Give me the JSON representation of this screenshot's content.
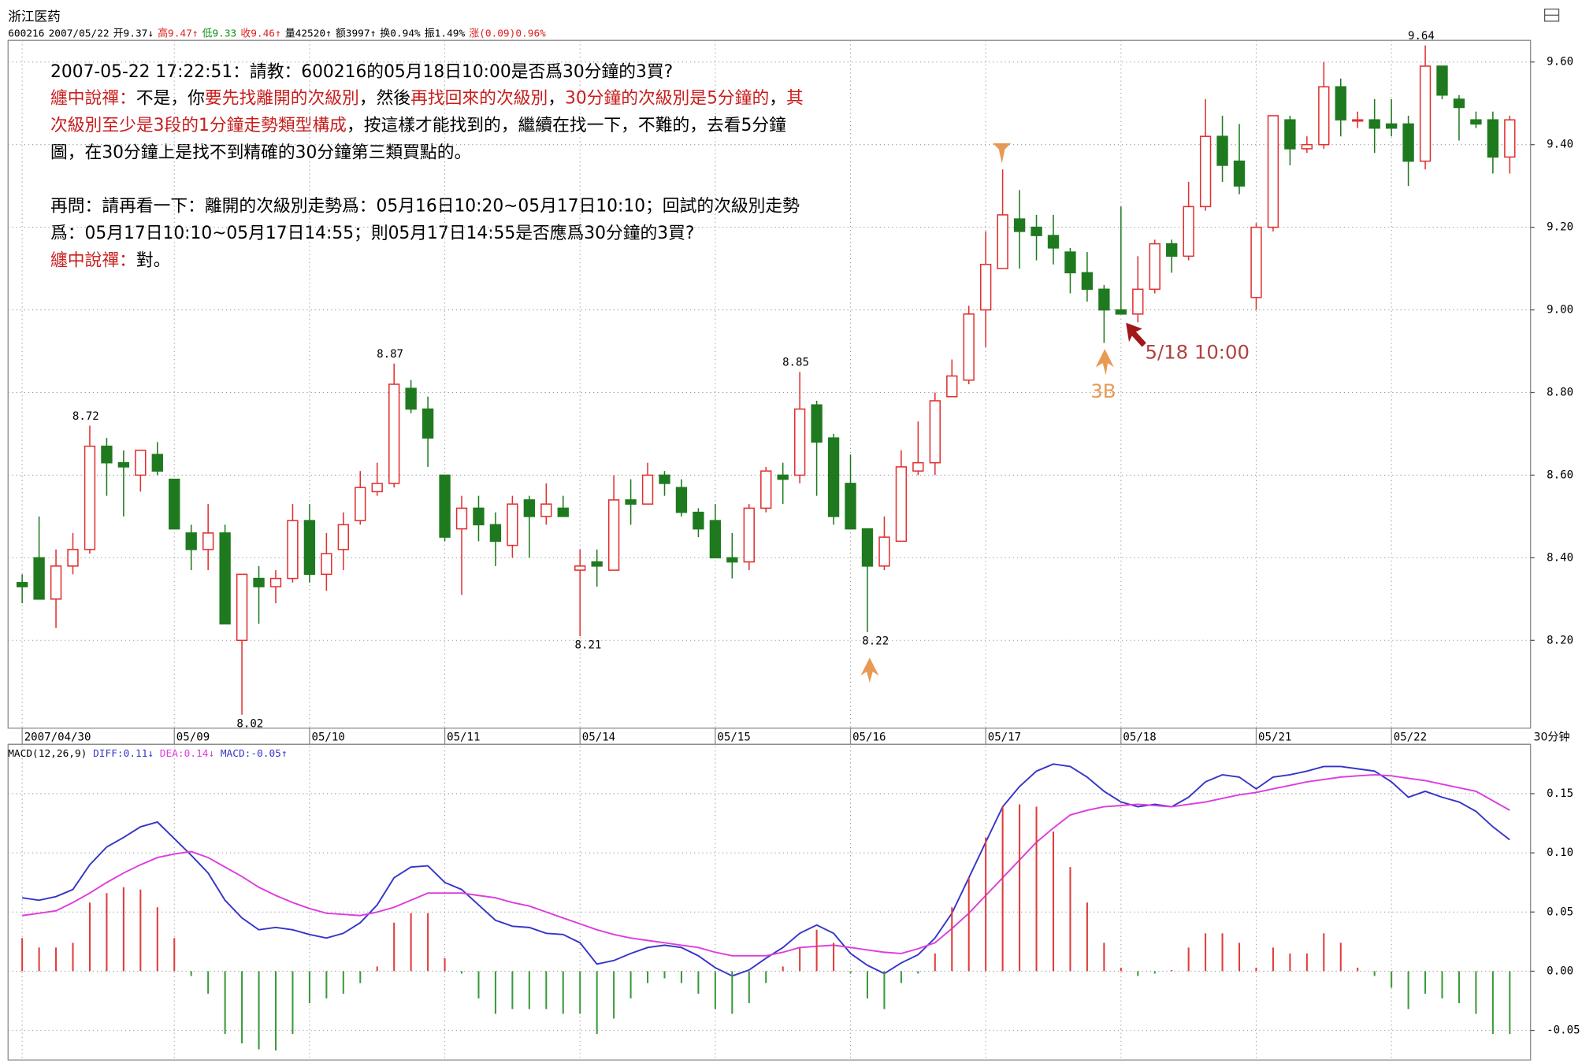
{
  "header": {
    "name": "浙江医药",
    "info": [
      {
        "text": "600216",
        "color": "#000000"
      },
      {
        "text": "2007/05/22",
        "color": "#000000"
      },
      {
        "text": "开9.37↓",
        "color": "#000000"
      },
      {
        "text": "高9.47↑",
        "color": "#e02020"
      },
      {
        "text": "低9.33",
        "color": "#109010"
      },
      {
        "text": "收9.46↑",
        "color": "#e02020"
      },
      {
        "text": "量42520↑",
        "color": "#000000"
      },
      {
        "text": "额3997↑",
        "color": "#000000"
      },
      {
        "text": "换0.94%",
        "color": "#000000"
      },
      {
        "text": "振1.49%",
        "color": "#000000"
      },
      {
        "text": "涨(0.09)0.96%",
        "color": "#e02020"
      }
    ]
  },
  "notes": [
    [
      {
        "text": "2007-05-22 17:22:51：請教：600216的05月18日10:00是否爲30分鐘的3買?",
        "color": "#000000"
      }
    ],
    [
      {
        "text": "纏中說禪：",
        "color": "#c81e1e"
      },
      {
        "text": "不是，你",
        "color": "#000000"
      },
      {
        "text": "要先找離開的次級別",
        "color": "#c81e1e"
      },
      {
        "text": "，然後",
        "color": "#000000"
      },
      {
        "text": "再找回來的次級別",
        "color": "#c81e1e"
      },
      {
        "text": "，",
        "color": "#000000"
      },
      {
        "text": "30分鐘的次級別是5分鐘的",
        "color": "#c81e1e"
      },
      {
        "text": "，",
        "color": "#000000"
      },
      {
        "text": "其",
        "color": "#c81e1e"
      }
    ],
    [
      {
        "text": "次級別至少是3段的1分鐘走勢類型構成",
        "color": "#c81e1e"
      },
      {
        "text": "，按這樣才能找到的，繼續在找一下，不難的，去看5分鐘",
        "color": "#000000"
      }
    ],
    [
      {
        "text": "圖，在30分鐘上是找不到精確的30分鐘第三類買點的。",
        "color": "#000000"
      }
    ],
    [
      {
        "text": "再問：請再看一下：離開的次級別走勢爲：05月16日10:20~05月17日10:10；回試的次級別走勢",
        "color": "#000000"
      }
    ],
    [
      {
        "text": "爲：05月17日10:10~05月17日14:55；則05月17日14:55是否應爲30分鐘的3買?",
        "color": "#000000"
      }
    ],
    [
      {
        "text": "纏中說禪：",
        "color": "#c81e1e"
      },
      {
        "text": "對。",
        "color": "#000000"
      }
    ]
  ],
  "point_label": "5/18 10:00",
  "buy_label": "3B",
  "period": "30分钟",
  "chart_data": [
    {
      "type": "candlestick",
      "categories": [
        "2007/04/30",
        null,
        null,
        null,
        null,
        null,
        null,
        null,
        null,
        "05/09",
        null,
        null,
        null,
        null,
        null,
        null,
        null,
        "05/10",
        null,
        null,
        null,
        null,
        null,
        null,
        null,
        "05/11",
        null,
        null,
        null,
        null,
        null,
        null,
        null,
        "05/14",
        null,
        null,
        null,
        null,
        null,
        null,
        null,
        "05/15",
        null,
        null,
        null,
        null,
        null,
        null,
        null,
        "05/16",
        null,
        null,
        null,
        null,
        null,
        null,
        null,
        "05/17",
        null,
        null,
        null,
        null,
        null,
        null,
        null,
        "05/18",
        null,
        null,
        null,
        null,
        null,
        null,
        null,
        "05/21",
        null,
        null,
        null,
        null,
        null,
        null,
        null,
        "05/22",
        null,
        null,
        null,
        null,
        null,
        null,
        null
      ],
      "open": [
        8.34,
        8.4,
        8.3,
        8.38,
        8.42,
        8.67,
        8.63,
        8.6,
        8.65,
        8.59,
        8.46,
        8.42,
        8.46,
        8.2,
        8.35,
        8.33,
        8.35,
        8.49,
        8.36,
        8.42,
        8.49,
        8.56,
        8.58,
        8.81,
        8.76,
        8.6,
        8.47,
        8.52,
        8.48,
        8.43,
        8.54,
        8.5,
        8.52,
        8.37,
        8.39,
        8.37,
        8.54,
        8.53,
        8.6,
        8.57,
        8.51,
        8.49,
        8.4,
        8.39,
        8.52,
        8.6,
        8.6,
        8.77,
        8.69,
        8.58,
        8.47,
        8.38,
        8.44,
        8.61,
        8.63,
        8.79,
        8.83,
        9.0,
        9.1,
        9.22,
        9.2,
        9.18,
        9.14,
        9.09,
        9.05,
        9.0,
        8.99,
        9.05,
        9.16,
        9.13,
        9.25,
        9.42,
        9.36,
        9.03,
        9.2,
        9.46,
        9.39,
        9.4,
        9.54,
        9.46,
        9.46,
        9.45,
        9.45,
        9.36,
        9.59,
        9.51,
        9.46,
        9.46,
        9.37
      ],
      "high": [
        8.36,
        8.5,
        8.42,
        8.46,
        8.72,
        8.69,
        8.66,
        8.66,
        8.68,
        8.59,
        8.48,
        8.53,
        8.48,
        8.36,
        8.38,
        8.37,
        8.53,
        8.53,
        8.46,
        8.51,
        8.61,
        8.63,
        8.87,
        8.83,
        8.79,
        8.6,
        8.55,
        8.55,
        8.51,
        8.55,
        8.55,
        8.58,
        8.55,
        8.42,
        8.42,
        8.6,
        8.59,
        8.63,
        8.61,
        8.59,
        8.52,
        8.53,
        8.46,
        8.53,
        8.62,
        8.63,
        8.85,
        8.78,
        8.7,
        8.65,
        8.47,
        8.5,
        8.66,
        8.73,
        8.8,
        8.88,
        9.01,
        9.19,
        9.34,
        9.29,
        9.23,
        9.23,
        9.15,
        9.14,
        9.06,
        9.25,
        9.13,
        9.17,
        9.17,
        9.31,
        9.51,
        9.47,
        9.45,
        9.21,
        9.47,
        9.47,
        9.42,
        9.6,
        9.56,
        9.48,
        9.51,
        9.51,
        9.47,
        9.64,
        9.59,
        9.52,
        9.48,
        9.48,
        9.47
      ],
      "low": [
        8.29,
        8.3,
        8.23,
        8.36,
        8.41,
        8.55,
        8.5,
        8.56,
        8.6,
        8.47,
        8.37,
        8.37,
        8.24,
        8.02,
        8.24,
        8.29,
        8.34,
        8.34,
        8.32,
        8.37,
        8.48,
        8.55,
        8.57,
        8.75,
        8.62,
        8.44,
        8.31,
        8.44,
        8.38,
        8.4,
        8.4,
        8.48,
        8.5,
        8.21,
        8.33,
        8.37,
        8.48,
        8.53,
        8.55,
        8.5,
        8.45,
        8.4,
        8.35,
        8.37,
        8.51,
        8.53,
        8.58,
        8.55,
        8.48,
        8.47,
        8.22,
        8.37,
        8.44,
        8.6,
        8.6,
        8.79,
        8.82,
        8.91,
        9.1,
        9.1,
        9.12,
        9.11,
        9.04,
        9.02,
        8.92,
        8.99,
        8.97,
        9.04,
        9.09,
        9.12,
        9.24,
        9.31,
        9.28,
        9.0,
        9.19,
        9.35,
        9.38,
        9.39,
        9.42,
        9.44,
        9.38,
        9.42,
        9.3,
        9.34,
        9.51,
        9.41,
        9.44,
        9.33,
        9.33
      ],
      "close": [
        8.33,
        8.3,
        8.38,
        8.42,
        8.67,
        8.63,
        8.62,
        8.66,
        8.61,
        8.47,
        8.42,
        8.46,
        8.24,
        8.36,
        8.33,
        8.35,
        8.49,
        8.36,
        8.41,
        8.48,
        8.57,
        8.58,
        8.82,
        8.76,
        8.69,
        8.45,
        8.52,
        8.48,
        8.44,
        8.53,
        8.5,
        8.53,
        8.5,
        8.38,
        8.38,
        8.54,
        8.53,
        8.6,
        8.58,
        8.51,
        8.47,
        8.4,
        8.39,
        8.52,
        8.61,
        8.59,
        8.76,
        8.68,
        8.5,
        8.47,
        8.38,
        8.45,
        8.62,
        8.63,
        8.78,
        8.84,
        8.99,
        9.11,
        9.23,
        9.19,
        9.18,
        9.15,
        9.09,
        9.05,
        9.0,
        8.99,
        9.05,
        9.16,
        9.13,
        9.25,
        9.42,
        9.35,
        9.3,
        9.2,
        9.47,
        9.39,
        9.4,
        9.54,
        9.46,
        9.46,
        9.44,
        9.44,
        9.36,
        9.59,
        9.52,
        9.49,
        9.45,
        9.37,
        9.46
      ],
      "up_color": "#e03030",
      "down_color": "#1f7a1f",
      "labeled_highs": [
        4,
        22,
        46,
        83
      ],
      "labeled_lows": [
        13,
        33,
        50
      ],
      "ylim": [
        7.99,
        9.65
      ],
      "yticks": [
        {
          "value": 8.2,
          "label": "8.20"
        },
        {
          "value": 8.4,
          "label": "8.40"
        },
        {
          "value": 8.6,
          "label": "8.60"
        },
        {
          "value": 8.8,
          "label": "8.80"
        },
        {
          "value": 9.0,
          "label": "9.00"
        },
        {
          "value": 9.2,
          "label": "9.20"
        },
        {
          "value": 9.4,
          "label": "9.40"
        },
        {
          "value": 9.6,
          "label": "9.60"
        }
      ],
      "grid": true
    },
    {
      "type": "macd",
      "title": "MACD(12,26,9)",
      "series": [
        {
          "name": "DIFF:0.11↓",
          "color": "#3535c8",
          "values": [
            0.062,
            0.06,
            0.063,
            0.069,
            0.09,
            0.105,
            0.113,
            0.122,
            0.126,
            0.112,
            0.098,
            0.083,
            0.06,
            0.045,
            0.035,
            0.037,
            0.035,
            0.031,
            0.028,
            0.032,
            0.041,
            0.056,
            0.079,
            0.088,
            0.089,
            0.075,
            0.069,
            0.056,
            0.043,
            0.038,
            0.037,
            0.032,
            0.031,
            0.024,
            0.006,
            0.009,
            0.015,
            0.02,
            0.022,
            0.02,
            0.013,
            0.003,
            -0.004,
            0.001,
            0.011,
            0.02,
            0.032,
            0.039,
            0.032,
            0.015,
            0.005,
            -0.002,
            0.007,
            0.014,
            0.028,
            0.049,
            0.079,
            0.109,
            0.139,
            0.156,
            0.169,
            0.175,
            0.173,
            0.164,
            0.152,
            0.143,
            0.139,
            0.141,
            0.139,
            0.147,
            0.16,
            0.166,
            0.164,
            0.154,
            0.164,
            0.166,
            0.169,
            0.173,
            0.173,
            0.171,
            0.169,
            0.16,
            0.147,
            0.152,
            0.147,
            0.143,
            0.135,
            0.122,
            0.111
          ]
        },
        {
          "name": "DEA:0.14↓",
          "color": "#dd3ddd",
          "values": [
            0.047,
            0.049,
            0.051,
            0.058,
            0.066,
            0.075,
            0.083,
            0.09,
            0.096,
            0.099,
            0.101,
            0.096,
            0.088,
            0.08,
            0.071,
            0.064,
            0.058,
            0.053,
            0.049,
            0.048,
            0.047,
            0.05,
            0.054,
            0.06,
            0.066,
            0.066,
            0.066,
            0.064,
            0.062,
            0.058,
            0.055,
            0.05,
            0.045,
            0.04,
            0.035,
            0.031,
            0.028,
            0.026,
            0.024,
            0.022,
            0.02,
            0.016,
            0.013,
            0.013,
            0.013,
            0.016,
            0.02,
            0.021,
            0.022,
            0.02,
            0.018,
            0.016,
            0.015,
            0.019,
            0.024,
            0.036,
            0.049,
            0.064,
            0.079,
            0.094,
            0.109,
            0.121,
            0.132,
            0.136,
            0.139,
            0.14,
            0.141,
            0.14,
            0.139,
            0.141,
            0.143,
            0.146,
            0.149,
            0.151,
            0.154,
            0.157,
            0.16,
            0.162,
            0.164,
            0.165,
            0.166,
            0.165,
            0.163,
            0.161,
            0.158,
            0.155,
            0.152,
            0.144,
            0.136
          ]
        },
        {
          "name": "MACD:-0.05↑",
          "kind": "bar",
          "color": "#e03c3c",
          "negative_color": "#3a9a3a",
          "legend_color": "#3535c8",
          "values": [
            0.028,
            0.02,
            0.02,
            0.024,
            0.058,
            0.066,
            0.071,
            0.069,
            0.054,
            0.028,
            -0.004,
            -0.019,
            -0.053,
            -0.061,
            -0.066,
            -0.067,
            -0.053,
            -0.027,
            -0.023,
            -0.019,
            -0.01,
            0.004,
            0.041,
            0.049,
            0.049,
            0.011,
            -0.002,
            -0.023,
            -0.036,
            -0.032,
            -0.032,
            -0.032,
            -0.036,
            -0.036,
            -0.053,
            -0.04,
            -0.023,
            -0.01,
            -0.006,
            -0.01,
            -0.019,
            -0.032,
            -0.036,
            -0.027,
            -0.01,
            0.004,
            0.02,
            0.035,
            0.024,
            -0.002,
            -0.023,
            -0.032,
            -0.01,
            -0.002,
            0.015,
            0.054,
            0.079,
            0.113,
            0.139,
            0.141,
            0.139,
            0.118,
            0.088,
            0.058,
            0.024,
            0.003,
            -0.004,
            -0.002,
            0.001,
            0.02,
            0.032,
            0.032,
            0.024,
            0.003,
            0.02,
            0.015,
            0.015,
            0.032,
            0.024,
            0.003,
            -0.004,
            -0.014,
            -0.032,
            -0.019,
            -0.023,
            -0.027,
            -0.036,
            -0.053,
            -0.053
          ]
        }
      ],
      "ylim": [
        -0.075,
        0.19
      ],
      "yticks": [
        0.15,
        {
          "value": 0.1,
          "label": "0.10"
        },
        0.05,
        {
          "value": 0,
          "label": "0.00"
        },
        -0.05
      ],
      "grid": true
    }
  ]
}
